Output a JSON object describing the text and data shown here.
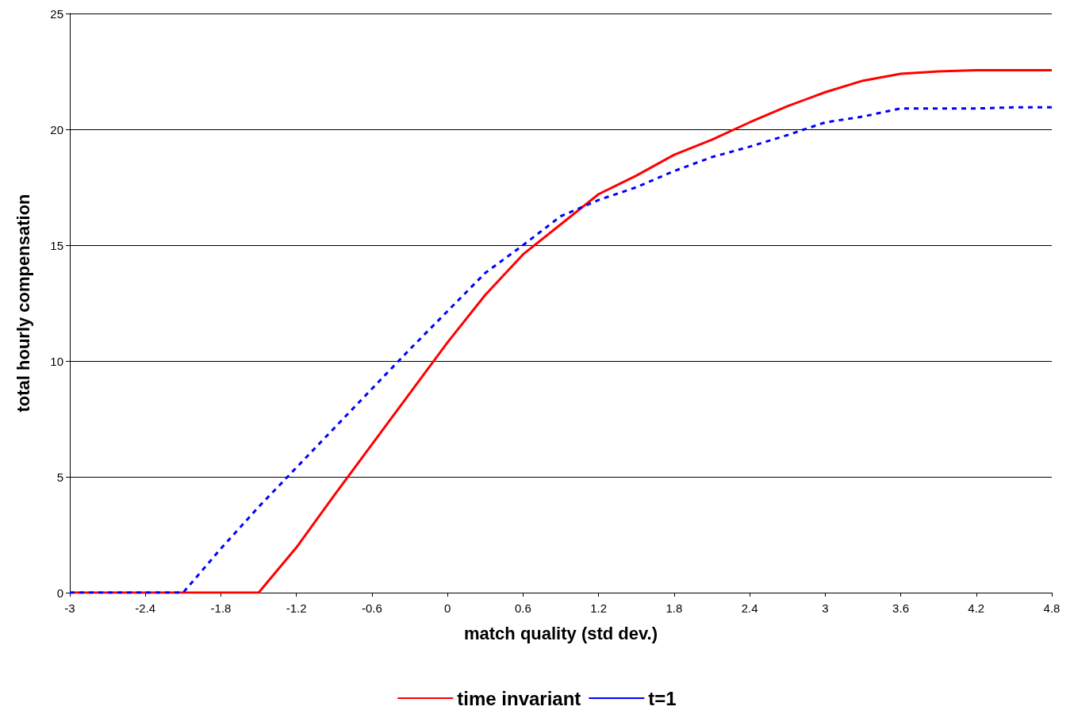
{
  "chart_data": {
    "type": "line",
    "xlabel": "match quality (std dev.)",
    "ylabel": "total hourly compensation",
    "x": [
      -3,
      -2.7,
      -2.4,
      -2.1,
      -1.8,
      -1.5,
      -1.2,
      -0.9,
      -0.6,
      -0.3,
      0,
      0.3,
      0.6,
      0.9,
      1.2,
      1.5,
      1.8,
      2.1,
      2.4,
      2.7,
      3,
      3.3,
      3.6,
      3.9,
      4.2,
      4.5,
      4.8
    ],
    "series": [
      {
        "name": "time invariant",
        "color": "#ff0000",
        "line_style": "solid",
        "values": [
          0,
          0,
          0,
          0,
          0,
          0,
          1.95,
          4.2,
          6.4,
          8.6,
          10.8,
          12.85,
          14.6,
          15.9,
          17.2,
          18.0,
          18.9,
          19.55,
          20.3,
          21.0,
          21.6,
          22.1,
          22.4,
          22.5,
          22.55,
          22.55,
          22.55
        ]
      },
      {
        "name": "t=1",
        "color": "#0000ff",
        "line_style": "dashed",
        "values": [
          0,
          0,
          0,
          0,
          1.9,
          3.7,
          5.4,
          7.1,
          8.8,
          10.5,
          12.15,
          13.8,
          15.0,
          16.25,
          16.95,
          17.5,
          18.2,
          18.8,
          19.25,
          19.75,
          20.3,
          20.55,
          20.9,
          20.9,
          20.9,
          20.95,
          20.95
        ]
      }
    ],
    "xlim": [
      -3,
      4.8
    ],
    "xticks": [
      -3,
      -2.4,
      -1.8,
      -1.2,
      -0.6,
      0,
      0.6,
      1.2,
      1.8,
      2.4,
      3,
      3.6,
      4.2,
      4.8
    ],
    "ylim": [
      0,
      25
    ],
    "yticks": [
      0,
      5,
      10,
      15,
      20,
      25
    ],
    "grid": "y",
    "legend": "bottom",
    "marker": "none"
  }
}
